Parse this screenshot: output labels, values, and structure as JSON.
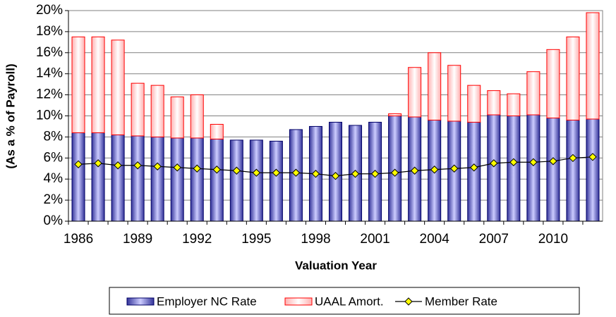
{
  "chart_data": {
    "type": "bar",
    "stacked": true,
    "y_label": "(As a % of Payroll)",
    "x_label": "Valuation Year",
    "categories": [
      "1986",
      null,
      null,
      "1989",
      null,
      null,
      "1992",
      null,
      null,
      "1995",
      null,
      null,
      "1998",
      null,
      null,
      "2001",
      null,
      null,
      "2004",
      null,
      null,
      "2007",
      null,
      null,
      "2010",
      null,
      null
    ],
    "series": [
      {
        "name": "Employer NC Rate",
        "color": "#9999ff",
        "values": [
          8.4,
          8.4,
          8.2,
          8.1,
          8.0,
          7.9,
          7.9,
          7.8,
          7.7,
          7.7,
          7.6,
          8.7,
          9.0,
          9.4,
          9.1,
          9.4,
          10.0,
          9.9,
          9.6,
          9.5,
          9.4,
          10.1,
          10.0,
          10.1,
          9.8,
          9.6,
          9.7
        ]
      },
      {
        "name": "UAAL Amort.",
        "color": "#ff0000",
        "values": [
          9.1,
          9.1,
          9.0,
          5.0,
          4.9,
          3.9,
          4.1,
          1.4,
          0,
          0,
          0,
          0,
          0,
          0,
          0,
          0,
          0.2,
          4.7,
          6.4,
          5.3,
          3.5,
          2.3,
          2.1,
          4.1,
          6.5,
          7.9,
          10.1
        ]
      },
      {
        "name": "Member Rate",
        "type": "line",
        "color": "#ffff00",
        "values": [
          5.4,
          5.5,
          5.3,
          5.3,
          5.2,
          5.1,
          5.0,
          4.9,
          4.8,
          4.6,
          4.6,
          4.6,
          4.5,
          4.3,
          4.5,
          4.5,
          4.6,
          4.8,
          4.9,
          5.0,
          5.1,
          5.5,
          5.6,
          5.6,
          5.7,
          6.0,
          6.1
        ]
      }
    ],
    "ylim": [
      0,
      20
    ],
    "yticks": [
      {
        "value": 0,
        "label": "0%"
      },
      {
        "value": 2,
        "label": "2%"
      },
      {
        "value": 4,
        "label": "4%"
      },
      {
        "value": 6,
        "label": "6%"
      },
      {
        "value": 8,
        "label": "8%"
      },
      {
        "value": 10,
        "label": "10%"
      },
      {
        "value": 12,
        "label": "12%"
      },
      {
        "value": 14,
        "label": "14%"
      },
      {
        "value": 16,
        "label": "16%"
      },
      {
        "value": 18,
        "label": "18%"
      },
      {
        "value": 20,
        "label": "20%"
      }
    ],
    "grid": true,
    "legend": "bottom"
  }
}
